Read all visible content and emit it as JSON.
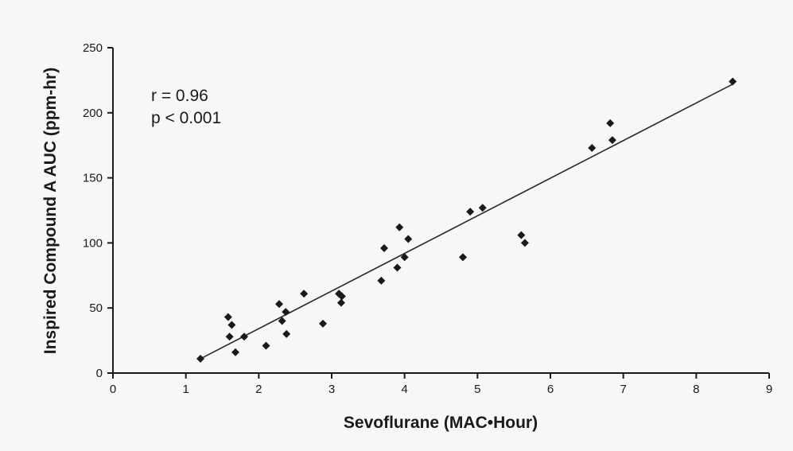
{
  "chart_data": {
    "type": "scatter",
    "xlabel": "Sevoflurane (MAC•Hour)",
    "ylabel": "Inspired Compound A AUC (ppm-hr)",
    "xlim": [
      0,
      9
    ],
    "ylim": [
      0,
      250
    ],
    "xticks": [
      0,
      1,
      2,
      3,
      4,
      5,
      6,
      7,
      8,
      9
    ],
    "yticks": [
      0,
      50,
      100,
      150,
      200,
      250
    ],
    "grid": false,
    "annotations": [
      "r = 0.96",
      "p < 0.001"
    ],
    "series": [
      {
        "points": [
          [
            1.2,
            11
          ],
          [
            1.58,
            43
          ],
          [
            1.6,
            28
          ],
          [
            1.63,
            37
          ],
          [
            1.68,
            16
          ],
          [
            1.8,
            28
          ],
          [
            2.1,
            21
          ],
          [
            2.28,
            53
          ],
          [
            2.32,
            40
          ],
          [
            2.37,
            47
          ],
          [
            2.38,
            30
          ],
          [
            2.62,
            61
          ],
          [
            2.88,
            38
          ],
          [
            3.1,
            61
          ],
          [
            3.13,
            54
          ],
          [
            3.14,
            59
          ],
          [
            3.68,
            71
          ],
          [
            3.72,
            96
          ],
          [
            3.9,
            81
          ],
          [
            3.93,
            112
          ],
          [
            4.0,
            89
          ],
          [
            4.05,
            103
          ],
          [
            4.8,
            89
          ],
          [
            4.9,
            124
          ],
          [
            5.07,
            127
          ],
          [
            5.6,
            106
          ],
          [
            5.65,
            100
          ],
          [
            6.57,
            173
          ],
          [
            6.82,
            192
          ],
          [
            6.85,
            179
          ],
          [
            8.5,
            224
          ]
        ]
      }
    ],
    "fit_line": {
      "x": [
        1.2,
        8.5
      ],
      "y": [
        11,
        222
      ]
    }
  },
  "colors": {
    "marker": "#1a1a1a",
    "line": "#2a2a2a",
    "axis": "#1a1a1a",
    "background": "#f7f7f7"
  }
}
